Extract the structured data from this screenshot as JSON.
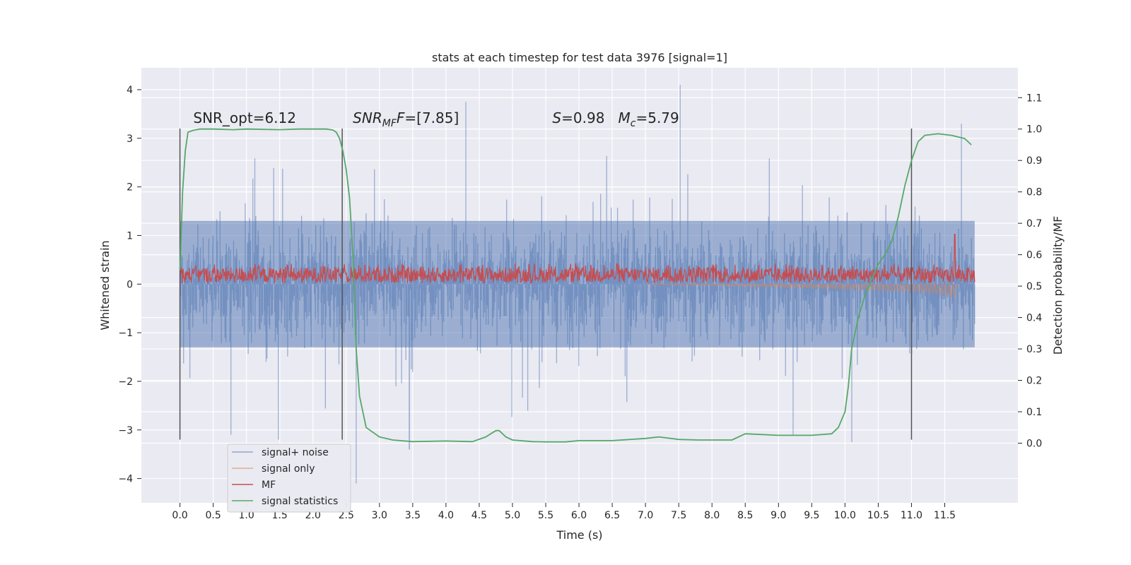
{
  "chart_data": {
    "type": "line",
    "title": "stats at each timestep for test data 3976 [signal=1]",
    "xlabel": "Time (s)",
    "ylabel_left": "Whitened strain",
    "ylabel_right": "Detection probability/MF",
    "xlim": [
      -0.58,
      12.6
    ],
    "ylim_left": [
      -4.5,
      4.45
    ],
    "ylim_right": [
      -0.19,
      1.195
    ],
    "x_ticks": [
      0.0,
      0.5,
      1.0,
      1.5,
      2.0,
      2.5,
      3.0,
      3.5,
      4.0,
      4.5,
      5.0,
      5.5,
      6.0,
      6.5,
      7.0,
      7.5,
      8.0,
      8.5,
      9.0,
      9.5,
      10.0,
      10.5,
      11.0,
      11.5
    ],
    "x_tick_labels": [
      "0.0",
      "0.5",
      "1.0",
      "1.5",
      "2.0",
      "2.5",
      "3.0",
      "3.5",
      "4.0",
      "4.5",
      "5.0",
      "5.5",
      "6.0",
      "6.5",
      "7.0",
      "7.5",
      "8.0",
      "8.5",
      "9.0",
      "9.5",
      "10.0",
      "10.5",
      "11.0",
      "11.5"
    ],
    "y_left_ticks": [
      -4,
      -3,
      -2,
      -1,
      0,
      1,
      2,
      3,
      4
    ],
    "y_left_tick_labels": [
      "−4",
      "−3",
      "−2",
      "−1",
      "0",
      "1",
      "2",
      "3",
      "4"
    ],
    "y_right_ticks": [
      0.0,
      0.1,
      0.2,
      0.3,
      0.4,
      0.5,
      0.6,
      0.7,
      0.8,
      0.9,
      1.0,
      1.1
    ],
    "y_right_tick_labels": [
      "0.0",
      "0.1",
      "0.2",
      "0.3",
      "0.4",
      "0.5",
      "0.6",
      "0.7",
      "0.8",
      "0.9",
      "1.0",
      "1.1"
    ],
    "grid": true,
    "legend_position": "lower-left",
    "vertical_markers": [
      {
        "x": 0.0,
        "y_range": [
          -3.2,
          3.2
        ]
      },
      {
        "x": 2.44,
        "y_range": [
          -3.2,
          3.2
        ]
      },
      {
        "x": 11.0,
        "y_range": [
          -3.2,
          3.2
        ]
      }
    ],
    "annotations": [
      {
        "text": "SNR_opt=6.12",
        "x": 0.2,
        "y": 3.2
      },
      {
        "text": "SNR",
        "sub": "MF",
        "rest": "=[7.85]",
        "x": 2.6,
        "y": 3.2
      },
      {
        "text": "S",
        "rest": "=0.98   ",
        "text2": "M",
        "sub2": "c",
        "rest2": "=5.79",
        "x": 5.6,
        "y": 3.2
      }
    ],
    "series": [
      {
        "name": "signal+ noise",
        "color": "#4c72b0",
        "axis": "left",
        "x_range": [
          0.0,
          11.95
        ],
        "sample_count": 2400,
        "envelope_typical": [
          -1.3,
          1.3
        ],
        "extremes": {
          "max": 4.1,
          "min": -4.1
        },
        "spikes": [
          {
            "x": 7.52,
            "y": 4.1
          },
          {
            "x": 4.3,
            "y": 3.75
          },
          {
            "x": 2.65,
            "y": -4.1
          },
          {
            "x": 3.45,
            "y": -3.4
          },
          {
            "x": 1.48,
            "y": -3.2
          },
          {
            "x": 10.1,
            "y": -3.25
          },
          {
            "x": 11.75,
            "y": 3.3
          }
        ]
      },
      {
        "name": "signal only",
        "color": "#dd8452",
        "axis": "left",
        "x": [
          7.0,
          7.5,
          8.0,
          8.5,
          9.0,
          9.5,
          10.0,
          10.5,
          11.0,
          11.3,
          11.5,
          11.65,
          11.7
        ],
        "amplitude": [
          0.0,
          0.01,
          0.02,
          0.04,
          0.06,
          0.08,
          0.1,
          0.12,
          0.15,
          0.18,
          0.22,
          0.28,
          0.05
        ]
      },
      {
        "name": "MF",
        "color": "#c44e52",
        "axis": "right",
        "x_range": [
          0.0,
          11.95
        ],
        "band": [
          0.51,
          0.56
        ],
        "spike": {
          "x": 11.65,
          "y": 0.665
        }
      },
      {
        "name": "signal statistics",
        "color": "#55a868",
        "axis": "right",
        "x": [
          0.0,
          0.04,
          0.08,
          0.12,
          0.2,
          0.3,
          0.5,
          0.8,
          1.0,
          1.5,
          1.8,
          2.0,
          2.2,
          2.3,
          2.35,
          2.4,
          2.45,
          2.5,
          2.55,
          2.6,
          2.65,
          2.7,
          2.8,
          3.0,
          3.2,
          3.5,
          4.0,
          4.4,
          4.6,
          4.75,
          4.8,
          4.9,
          5.0,
          5.3,
          5.5,
          5.8,
          6.0,
          6.5,
          7.0,
          7.2,
          7.5,
          7.8,
          8.0,
          8.3,
          8.5,
          9.0,
          9.5,
          9.8,
          9.9,
          10.0,
          10.05,
          10.1,
          10.2,
          10.3,
          10.4,
          10.5,
          10.6,
          10.7,
          10.8,
          10.9,
          11.0,
          11.1,
          11.2,
          11.4,
          11.6,
          11.8,
          11.9
        ],
        "y": [
          0.55,
          0.8,
          0.93,
          0.99,
          0.996,
          1.0,
          1.0,
          0.998,
          1.0,
          0.998,
          1.0,
          1.0,
          1.0,
          0.997,
          0.99,
          0.97,
          0.93,
          0.87,
          0.78,
          0.6,
          0.3,
          0.15,
          0.05,
          0.02,
          0.01,
          0.005,
          0.007,
          0.005,
          0.02,
          0.04,
          0.04,
          0.02,
          0.01,
          0.005,
          0.004,
          0.004,
          0.008,
          0.008,
          0.015,
          0.02,
          0.012,
          0.01,
          0.01,
          0.01,
          0.03,
          0.025,
          0.025,
          0.03,
          0.05,
          0.1,
          0.18,
          0.3,
          0.4,
          0.47,
          0.52,
          0.57,
          0.6,
          0.64,
          0.72,
          0.82,
          0.9,
          0.96,
          0.98,
          0.985,
          0.98,
          0.97,
          0.95
        ]
      }
    ]
  }
}
